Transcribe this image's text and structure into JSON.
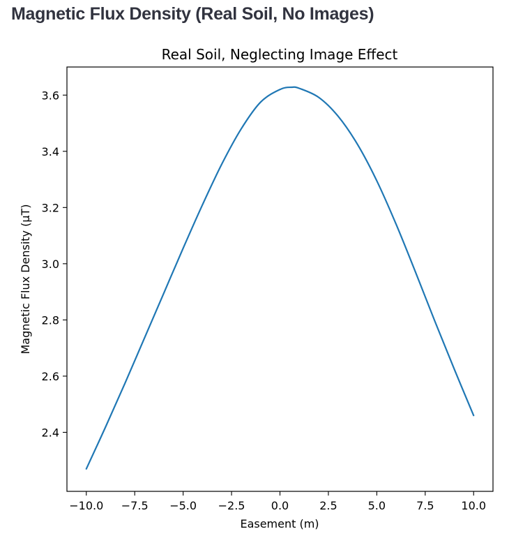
{
  "page": {
    "heading": "Magnetic Flux Density (Real Soil, No Images)"
  },
  "colors": {
    "line": "#1f77b4",
    "heading": "#31333f"
  },
  "chart_data": {
    "type": "line",
    "title": "Real Soil, Neglecting Image Effect",
    "xlabel": "Easement (m)",
    "ylabel": "Magnetic Flux Density (µT)",
    "xlim": [
      -11,
      11
    ],
    "ylim": [
      2.19,
      3.7
    ],
    "xticks": [
      -10.0,
      -7.5,
      -5.0,
      -2.5,
      0.0,
      2.5,
      5.0,
      7.5,
      10.0
    ],
    "xtick_labels": [
      "−10.0",
      "−7.5",
      "−5.0",
      "−2.5",
      "0.0",
      "2.5",
      "5.0",
      "7.5",
      "10.0"
    ],
    "yticks": [
      2.4,
      2.6,
      2.8,
      3.0,
      3.2,
      3.4,
      3.6
    ],
    "ytick_labels": [
      "2.4",
      "2.6",
      "2.8",
      "3.0",
      "3.2",
      "3.4",
      "3.6"
    ],
    "grid": false,
    "series": [
      {
        "x": [
          -10,
          -9,
          -8,
          -7,
          -6,
          -5,
          -4,
          -3,
          -2,
          -1,
          0,
          0.6,
          1,
          2,
          3,
          4,
          5,
          6,
          7,
          8,
          9,
          10
        ],
        "y": [
          2.27,
          2.42,
          2.575,
          2.735,
          2.895,
          3.055,
          3.21,
          3.355,
          3.48,
          3.575,
          3.62,
          3.628,
          3.624,
          3.592,
          3.525,
          3.425,
          3.295,
          3.14,
          2.97,
          2.795,
          2.625,
          2.46
        ]
      }
    ]
  }
}
